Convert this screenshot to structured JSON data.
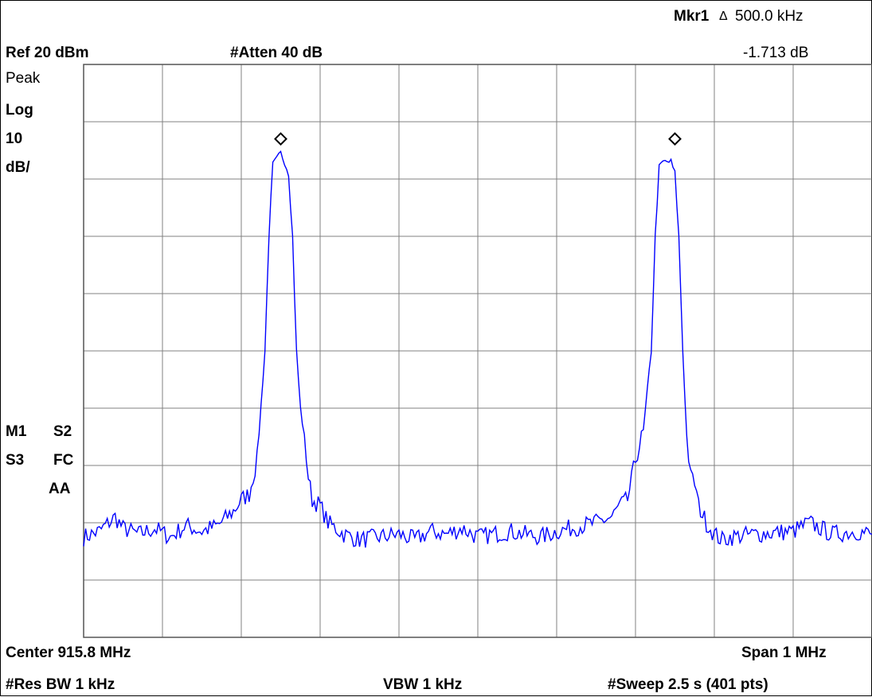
{
  "header": {
    "marker_label": "Mkr1",
    "marker_delta_symbol": "Δ",
    "marker_freq": "500.0 kHz",
    "marker_level": "-1.713 dB",
    "ref_level": "Ref 20 dBm",
    "attenuation": "#Atten 40 dB"
  },
  "left_panel": {
    "detector": "Peak",
    "scale_type": "Log",
    "scale_value": "10",
    "scale_unit": "dB/",
    "m1": "M1",
    "s2": "S2",
    "s3": "S3",
    "fc": "FC",
    "aa": "AA"
  },
  "footer": {
    "center": "Center 915.8 MHz",
    "span": "Span 1 MHz",
    "res_bw": "#Res BW 1 kHz",
    "vbw": "VBW 1 kHz",
    "sweep": "#Sweep 2.5 s (401 pts)"
  },
  "colors": {
    "trace": "#0000ff",
    "grid": "#808080",
    "marker": "#000000"
  },
  "chart_data": {
    "type": "line",
    "x_unit": "MHz",
    "y_unit": "dBm",
    "xlim": [
      915.3,
      916.3
    ],
    "ylim": [
      -80,
      20
    ],
    "grid": true,
    "divisions": [
      10,
      10
    ],
    "series": [
      {
        "x": [
          915.3,
          915.32,
          915.34,
          915.35,
          915.37,
          915.39,
          915.41,
          915.43,
          915.45,
          915.47,
          915.49,
          915.5,
          915.51,
          915.52,
          915.53,
          915.535,
          915.54,
          915.545,
          915.55,
          915.555,
          915.56,
          915.565,
          915.57,
          915.575,
          915.58,
          915.585,
          915.59,
          915.6,
          915.61,
          915.62,
          915.63,
          915.65,
          915.7,
          915.72,
          915.74,
          915.76,
          915.78,
          915.8,
          915.82,
          915.84,
          915.86,
          915.88,
          915.9,
          915.95,
          915.97,
          915.98,
          915.99,
          916.0,
          916.01,
          916.02,
          916.025,
          916.03,
          916.035,
          916.04,
          916.045,
          916.05,
          916.055,
          916.06,
          916.065,
          916.07,
          916.075,
          916.08,
          916.09,
          916.1,
          916.11,
          916.12,
          916.15,
          916.2,
          916.22,
          916.25,
          916.28,
          916.3
        ],
        "y": [
          -62.5,
          -61.5,
          -59.0,
          -61.0,
          -62.0,
          -61.0,
          -62.5,
          -60.5,
          -61.5,
          -60.5,
          -58.0,
          -56.0,
          -55.0,
          -49.0,
          -30.0,
          -10.0,
          2.5,
          3.5,
          4.5,
          3.0,
          1.0,
          -10.0,
          -30.0,
          -40.0,
          -45.0,
          -52.0,
          -56.0,
          -57.0,
          -60.0,
          -61.0,
          -62.0,
          -63.0,
          -62.0,
          -63.0,
          -61.5,
          -62.0,
          -61.0,
          -62.5,
          -62.0,
          -61.5,
          -62.0,
          -62.5,
          -61.5,
          -60.0,
          -59.0,
          -57.0,
          -56.0,
          -49.0,
          -44.0,
          -30.0,
          -10.0,
          2.0,
          3.0,
          3.0,
          3.0,
          1.0,
          -10.0,
          -30.0,
          -45.0,
          -52.0,
          -53.0,
          -57.0,
          -60.0,
          -62.0,
          -63.0,
          -62.5,
          -62.0,
          -61.5,
          -60.0,
          -62.0,
          -61.5,
          -62.0
        ]
      }
    ],
    "markers": [
      {
        "x": 915.55,
        "y": 7.0
      },
      {
        "x": 916.05,
        "y": 7.0
      }
    ]
  }
}
